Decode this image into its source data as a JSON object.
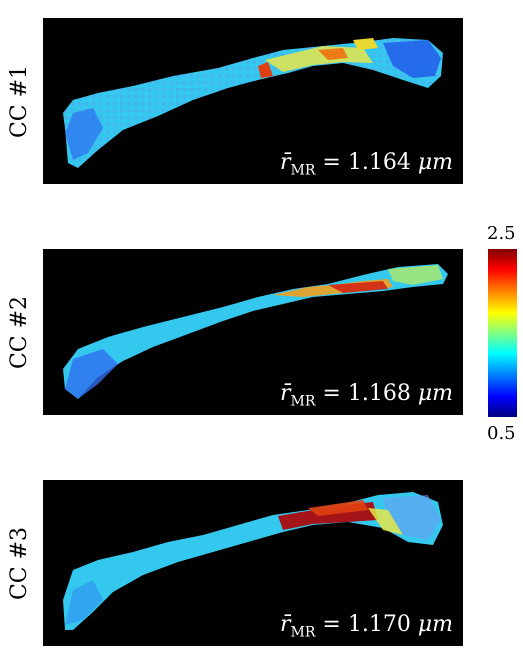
{
  "panels": [
    {
      "label": "CC #1",
      "radius_symbol": "r̄",
      "radius_sub": "MR",
      "radius_value": "= 1.164",
      "radius_unit": "μm"
    },
    {
      "label": "CC #2",
      "radius_symbol": "r̄",
      "radius_sub": "MR",
      "radius_value": "= 1.168",
      "radius_unit": "μm"
    },
    {
      "label": "CC #3",
      "radius_symbol": "r̄",
      "radius_sub": "MR",
      "radius_value": "= 1.170",
      "radius_unit": "μm"
    }
  ],
  "colorbar": {
    "max": "2.5",
    "min": "0.5",
    "colormap": "jet"
  },
  "colors": {
    "background": "#000000",
    "text_on_dark": "#ffffff"
  }
}
